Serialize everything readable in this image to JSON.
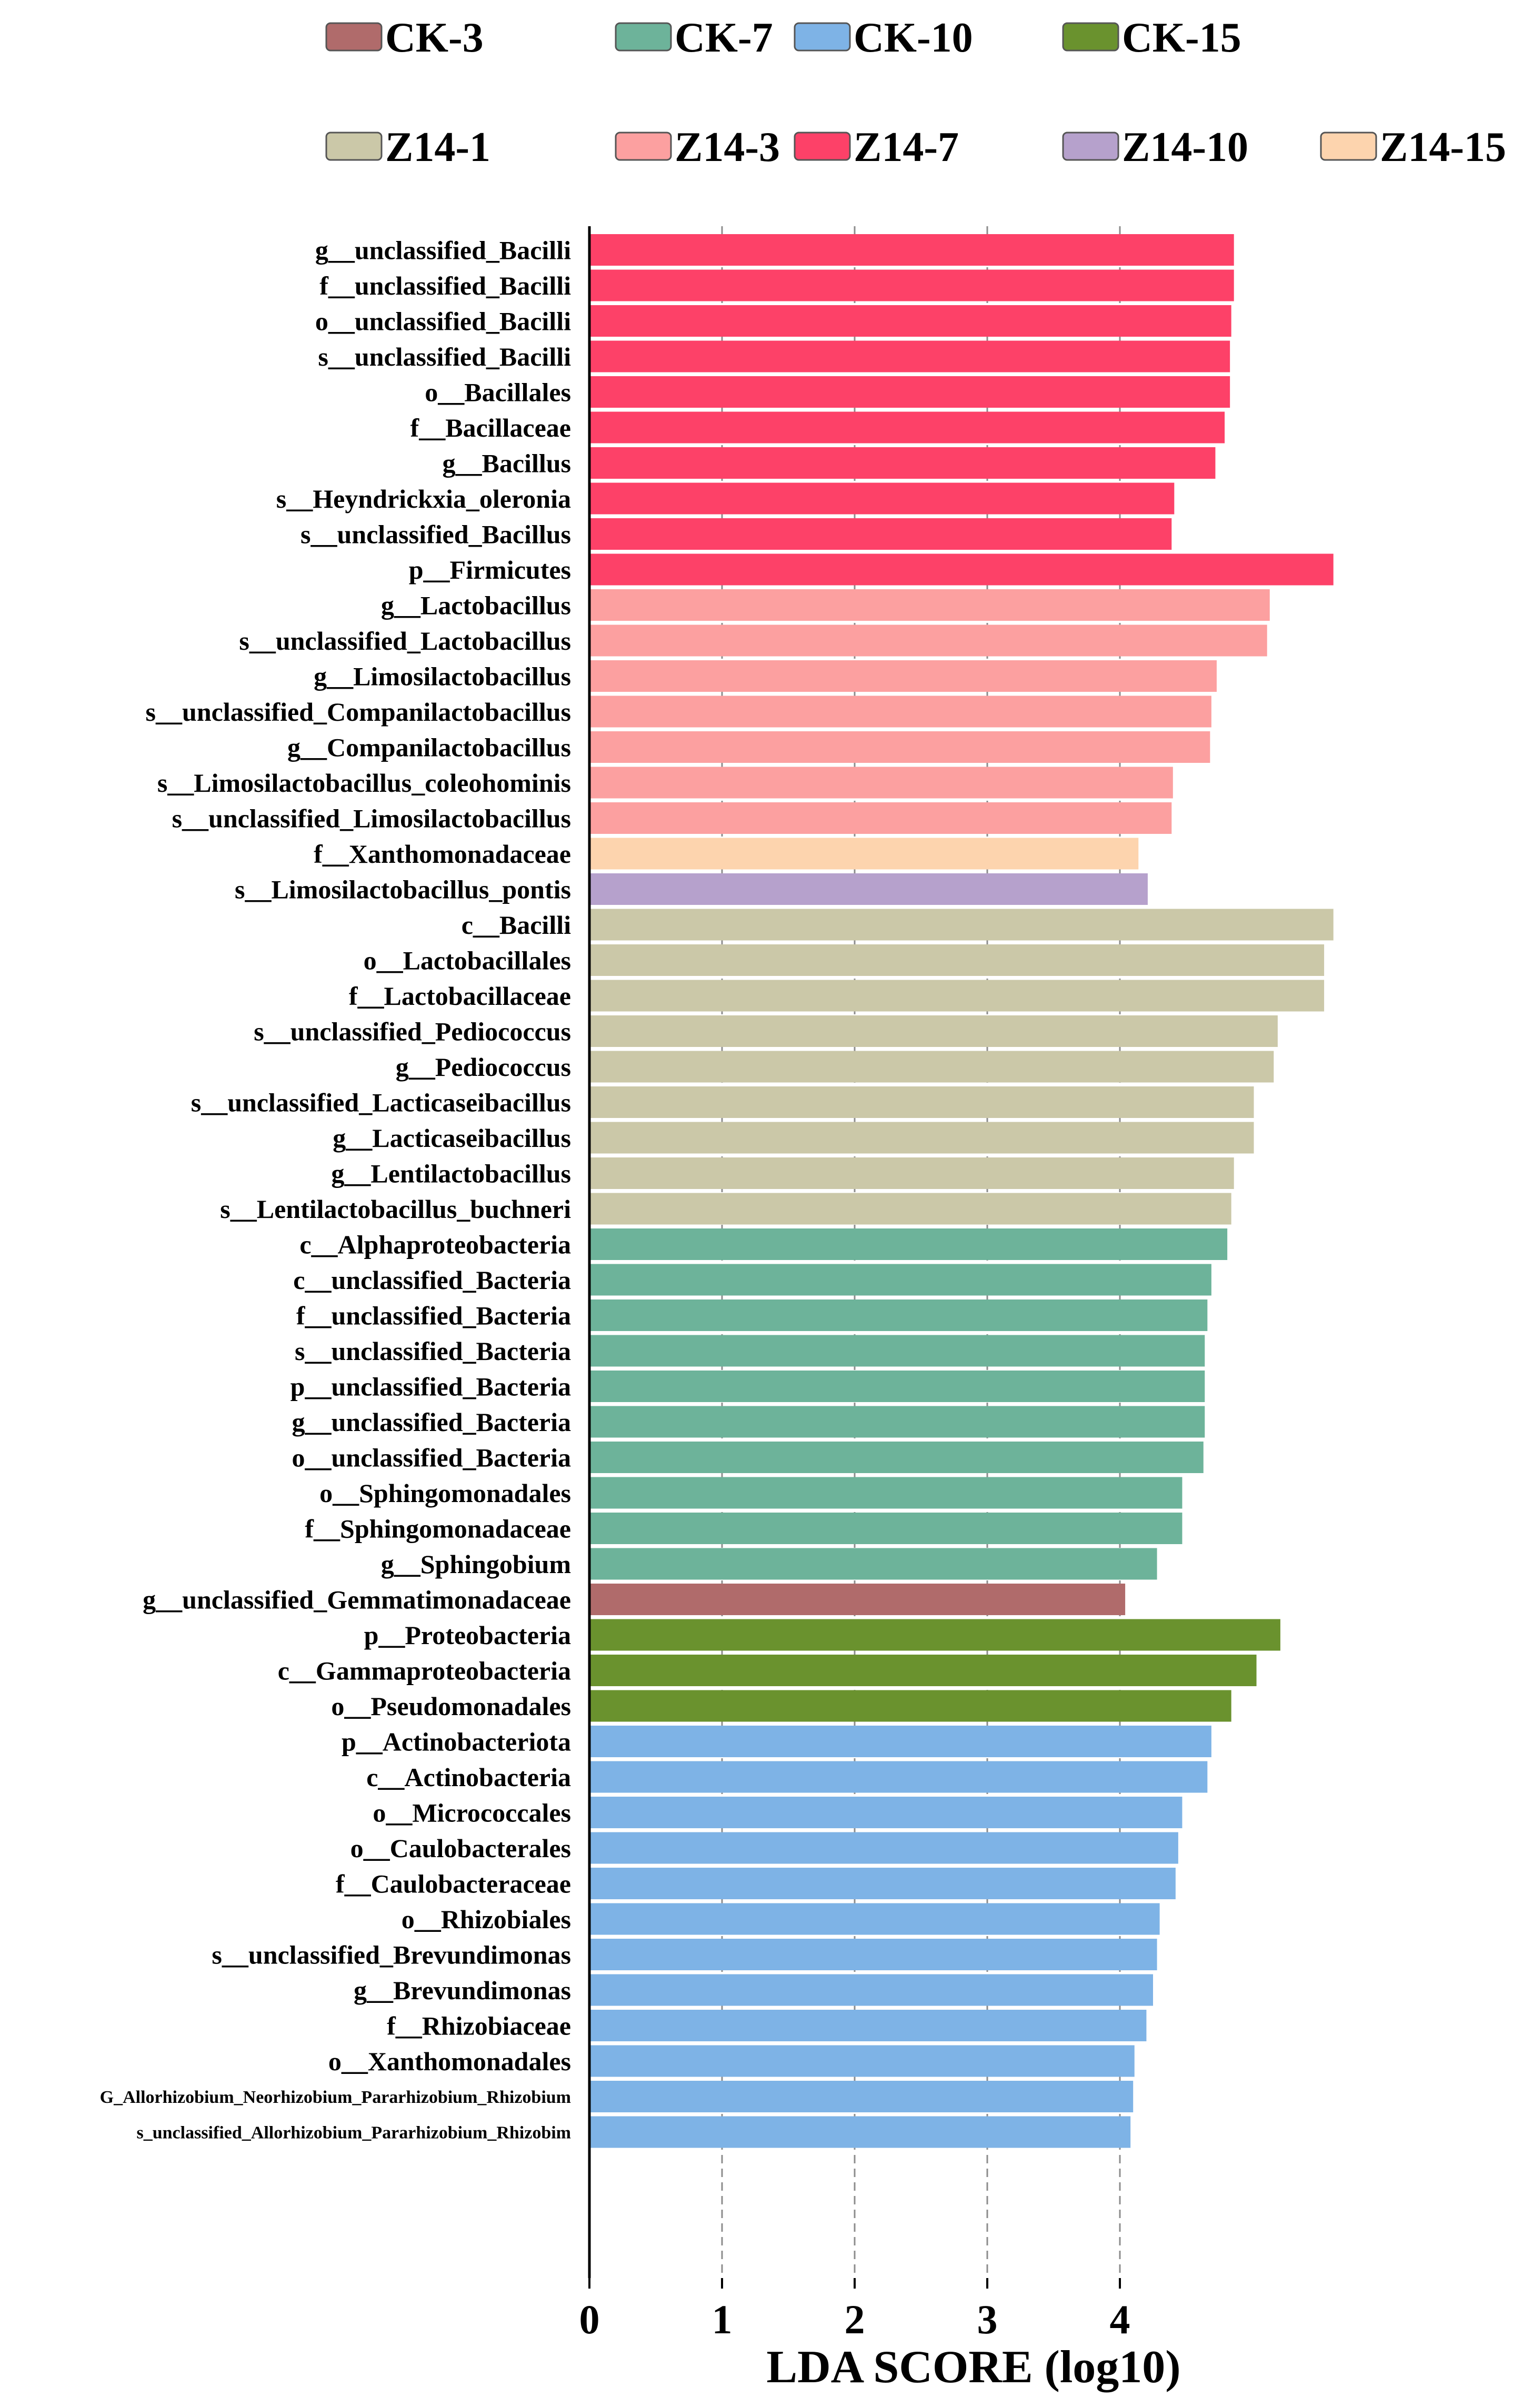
{
  "chart_data": {
    "type": "bar",
    "orientation": "horizontal",
    "xlabel": "LDA SCORE  (log10)",
    "xlim": [
      0,
      5.6
    ],
    "xticks": [
      "0",
      "1",
      "2",
      "3",
      "4"
    ],
    "grid": "vertical dashed",
    "groups": [
      {
        "name": "CK-3",
        "color": "#B06B6B"
      },
      {
        "name": "CK-7",
        "color": "#6DB39A"
      },
      {
        "name": "CK-10",
        "color": "#7EB3E6"
      },
      {
        "name": "CK-15",
        "color": "#6A922E"
      },
      {
        "name": "Z14-1",
        "color": "#CBC8A8"
      },
      {
        "name": "Z14-3",
        "color": "#FCA0A0"
      },
      {
        "name": "Z14-7",
        "color": "#FD4168"
      },
      {
        "name": "Z14-10",
        "color": "#B6A1CC"
      },
      {
        "name": "Z14-15",
        "color": "#FDD4AE"
      }
    ],
    "bars": [
      {
        "label": "g__unclassified_Bacilli",
        "value": 4.86,
        "group": "Z14-7"
      },
      {
        "label": "f__unclassified_Bacilli",
        "value": 4.86,
        "group": "Z14-7"
      },
      {
        "label": "o__unclassified_Bacilli",
        "value": 4.84,
        "group": "Z14-7"
      },
      {
        "label": "s__unclassified_Bacilli",
        "value": 4.83,
        "group": "Z14-7"
      },
      {
        "label": "o__Bacillales",
        "value": 4.83,
        "group": "Z14-7"
      },
      {
        "label": "f__Bacillaceae",
        "value": 4.79,
        "group": "Z14-7"
      },
      {
        "label": "g__Bacillus",
        "value": 4.72,
        "group": "Z14-7"
      },
      {
        "label": "s__Heyndrickxia_oleronia",
        "value": 4.41,
        "group": "Z14-7"
      },
      {
        "label": "s__unclassified_Bacillus",
        "value": 4.39,
        "group": "Z14-7"
      },
      {
        "label": "p__Firmicutes",
        "value": 5.61,
        "group": "Z14-7"
      },
      {
        "label": "g__Lactobacillus",
        "value": 5.13,
        "group": "Z14-3"
      },
      {
        "label": "s__unclassified_Lactobacillus",
        "value": 5.11,
        "group": "Z14-3"
      },
      {
        "label": "g__Limosilactobacillus",
        "value": 4.73,
        "group": "Z14-3"
      },
      {
        "label": "s__unclassified_Companilactobacillus",
        "value": 4.69,
        "group": "Z14-3"
      },
      {
        "label": "g__Companilactobacillus",
        "value": 4.68,
        "group": "Z14-3"
      },
      {
        "label": "s__Limosilactobacillus_coleohominis",
        "value": 4.4,
        "group": "Z14-3"
      },
      {
        "label": "s__unclassified_Limosilactobacillus",
        "value": 4.39,
        "group": "Z14-3"
      },
      {
        "label": "f__Xanthomonadaceae",
        "value": 4.14,
        "group": "Z14-15"
      },
      {
        "label": "s__Limosilactobacillus_pontis",
        "value": 4.21,
        "group": "Z14-10"
      },
      {
        "label": "c__Bacilli",
        "value": 5.61,
        "group": "Z14-1"
      },
      {
        "label": "o__Lactobacillales",
        "value": 5.54,
        "group": "Z14-1"
      },
      {
        "label": "f__Lactobacillaceae",
        "value": 5.54,
        "group": "Z14-1"
      },
      {
        "label": "s__unclassified_Pediococcus",
        "value": 5.19,
        "group": "Z14-1"
      },
      {
        "label": "g__Pediococcus",
        "value": 5.16,
        "group": "Z14-1"
      },
      {
        "label": "s__unclassified_Lacticaseibacillus",
        "value": 5.01,
        "group": "Z14-1"
      },
      {
        "label": "g__Lacticaseibacillus",
        "value": 5.01,
        "group": "Z14-1"
      },
      {
        "label": "g__Lentilactobacillus",
        "value": 4.86,
        "group": "Z14-1"
      },
      {
        "label": "s__Lentilactobacillus_buchneri",
        "value": 4.84,
        "group": "Z14-1"
      },
      {
        "label": "c__Alphaproteobacteria",
        "value": 4.81,
        "group": "CK-7"
      },
      {
        "label": "c__unclassified_Bacteria",
        "value": 4.69,
        "group": "CK-7"
      },
      {
        "label": "f__unclassified_Bacteria",
        "value": 4.66,
        "group": "CK-7"
      },
      {
        "label": "s__unclassified_Bacteria",
        "value": 4.64,
        "group": "CK-7"
      },
      {
        "label": "p__unclassified_Bacteria",
        "value": 4.64,
        "group": "CK-7"
      },
      {
        "label": "g__unclassified_Bacteria",
        "value": 4.64,
        "group": "CK-7"
      },
      {
        "label": "o__unclassified_Bacteria",
        "value": 4.63,
        "group": "CK-7"
      },
      {
        "label": "o__Sphingomonadales",
        "value": 4.47,
        "group": "CK-7"
      },
      {
        "label": "f__Sphingomonadaceae",
        "value": 4.47,
        "group": "CK-7"
      },
      {
        "label": "g__Sphingobium",
        "value": 4.28,
        "group": "CK-7"
      },
      {
        "label": "g__unclassified_Gemmatimonadaceae",
        "value": 4.04,
        "group": "CK-3"
      },
      {
        "label": "p__Proteobacteria",
        "value": 5.21,
        "group": "CK-15"
      },
      {
        "label": "c__Gammaproteobacteria",
        "value": 5.03,
        "group": "CK-15"
      },
      {
        "label": "o__Pseudomonadales",
        "value": 4.84,
        "group": "CK-15"
      },
      {
        "label": "p__Actinobacteriota",
        "value": 4.69,
        "group": "CK-10"
      },
      {
        "label": "c__Actinobacteria",
        "value": 4.66,
        "group": "CK-10"
      },
      {
        "label": "o__Micrococcales",
        "value": 4.47,
        "group": "CK-10"
      },
      {
        "label": "o__Caulobacterales",
        "value": 4.44,
        "group": "CK-10"
      },
      {
        "label": "f__Caulobacteraceae",
        "value": 4.42,
        "group": "CK-10"
      },
      {
        "label": "o__Rhizobiales",
        "value": 4.3,
        "group": "CK-10"
      },
      {
        "label": "s__unclassified_Brevundimonas",
        "value": 4.28,
        "group": "CK-10"
      },
      {
        "label": "g__Brevundimonas",
        "value": 4.25,
        "group": "CK-10"
      },
      {
        "label": "f__Rhizobiaceae",
        "value": 4.2,
        "group": "CK-10"
      },
      {
        "label": "o__Xanthomonadales",
        "value": 4.11,
        "group": "CK-10"
      },
      {
        "label": "G_Allorhizobium_Neorhizobium_Pararhizobium_Rhizobium",
        "value": 4.1,
        "group": "CK-10"
      },
      {
        "label": "s_unclassified_Allorhizobium_Pararhizobium_Rhizobim",
        "value": 4.08,
        "group": "CK-10"
      }
    ]
  }
}
